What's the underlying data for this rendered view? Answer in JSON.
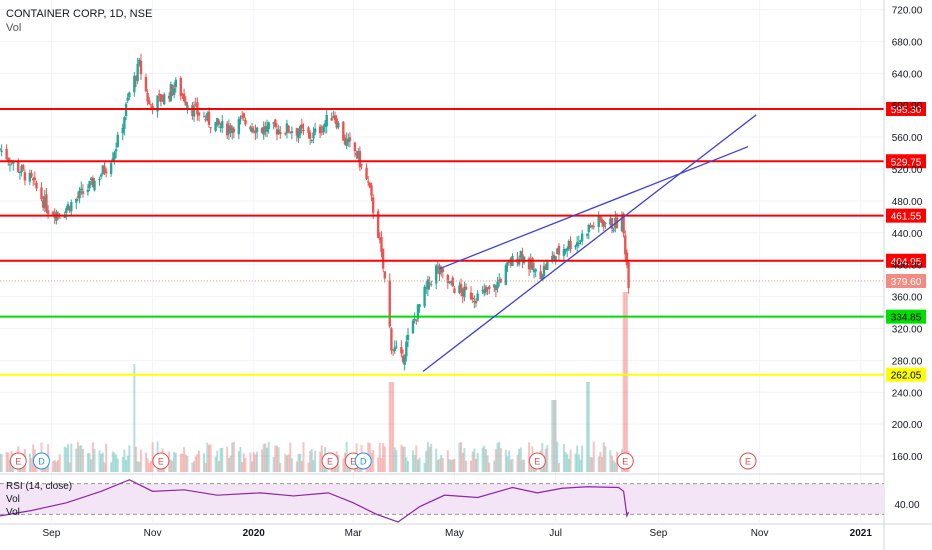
{
  "header": {
    "symbol_line": "CONTAINER CORP, 1D, NSE",
    "vol_label": "Vol"
  },
  "rsi_panel": {
    "label": "RSI (14, close)",
    "vol_label_1": "Vol",
    "vol_label_2": "Vol",
    "axis_label": "40.00",
    "upper_band": 70,
    "lower_band": 30
  },
  "colors": {
    "up": "#26a69a",
    "down": "#ef5350",
    "resistance": "#ff0000",
    "support_green": "#00dd00",
    "support_yellow": "#ffff00",
    "trendline": "#3f3fd6",
    "rsi_line": "#8e24aa",
    "rsi_fill": "#f3e5f5",
    "last_price": "#f28b82"
  },
  "chart_data": {
    "type": "candlestick",
    "title": "CONTAINER CORP, 1D, NSE",
    "y_axis_ticks": [
      "720.00",
      "680.00",
      "640.00",
      "600.00",
      "560.00",
      "520.00",
      "480.00",
      "440.00",
      "400.00",
      "360.00",
      "320.00",
      "280.00",
      "240.00",
      "200.00",
      "160.00"
    ],
    "y_tick_values": [
      720,
      680,
      640,
      600,
      560,
      520,
      480,
      440,
      400,
      360,
      320,
      280,
      240,
      200,
      160
    ],
    "x_axis_ticks": [
      "Sep",
      "Nov",
      "2020",
      "Mar",
      "May",
      "Jul",
      "Sep",
      "Nov",
      "2021"
    ],
    "x_tick_dates": [
      "2019-09-01",
      "2019-11-01",
      "2020-01-01",
      "2020-03-01",
      "2020-05-01",
      "2020-07-01",
      "2020-09-01",
      "2020-11-01",
      "2021-01-01"
    ],
    "date_range": [
      "2019-08-01",
      "2021-01-15"
    ],
    "price_range": [
      140,
      732
    ],
    "price_path": [
      [
        "2019-08-01",
        545
      ],
      [
        "2019-08-10",
        525
      ],
      [
        "2019-08-20",
        505
      ],
      [
        "2019-08-30",
        470
      ],
      [
        "2019-09-06",
        465
      ],
      [
        "2019-09-15",
        480
      ],
      [
        "2019-09-25",
        500
      ],
      [
        "2019-10-05",
        525
      ],
      [
        "2019-10-12",
        560
      ],
      [
        "2019-10-18",
        615
      ],
      [
        "2019-10-24",
        650
      ],
      [
        "2019-10-30",
        600
      ],
      [
        "2019-11-08",
        610
      ],
      [
        "2019-11-15",
        625
      ],
      [
        "2019-11-25",
        595
      ],
      [
        "2019-12-05",
        580
      ],
      [
        "2019-12-15",
        570
      ],
      [
        "2019-12-25",
        580
      ],
      [
        "2020-01-05",
        570
      ],
      [
        "2020-01-15",
        570
      ],
      [
        "2020-01-25",
        570
      ],
      [
        "2020-02-05",
        560
      ],
      [
        "2020-02-12",
        575
      ],
      [
        "2020-02-18",
        590
      ],
      [
        "2020-02-25",
        555
      ],
      [
        "2020-03-03",
        540
      ],
      [
        "2020-03-10",
        500
      ],
      [
        "2020-03-16",
        440
      ],
      [
        "2020-03-20",
        380
      ],
      [
        "2020-03-24",
        300
      ],
      [
        "2020-03-30",
        280
      ],
      [
        "2020-04-05",
        320
      ],
      [
        "2020-04-12",
        360
      ],
      [
        "2020-04-20",
        395
      ],
      [
        "2020-04-28",
        375
      ],
      [
        "2020-05-06",
        365
      ],
      [
        "2020-05-15",
        360
      ],
      [
        "2020-05-25",
        370
      ],
      [
        "2020-06-03",
        400
      ],
      [
        "2020-06-10",
        415
      ],
      [
        "2020-06-20",
        385
      ],
      [
        "2020-06-30",
        410
      ],
      [
        "2020-07-08",
        425
      ],
      [
        "2020-07-15",
        430
      ],
      [
        "2020-07-20",
        445
      ],
      [
        "2020-07-28",
        455
      ],
      [
        "2020-08-05",
        450
      ],
      [
        "2020-08-10",
        455
      ],
      [
        "2020-08-12",
        420
      ],
      [
        "2020-08-14",
        379.6
      ]
    ],
    "volume_spikes": [
      [
        "2020-03-24",
        0.5
      ],
      [
        "2019-10-20",
        0.6
      ],
      [
        "2020-06-30",
        0.4
      ],
      [
        "2020-07-20",
        0.5
      ],
      [
        "2020-08-12",
        1.0
      ]
    ],
    "horizontal_levels": [
      {
        "price": 595.3,
        "label": "595.30",
        "role": "resistance"
      },
      {
        "price": 529.75,
        "label": "529.75",
        "role": "resistance"
      },
      {
        "price": 461.55,
        "label": "461.55",
        "role": "resistance"
      },
      {
        "price": 404.95,
        "label": "404.95",
        "role": "resistance"
      },
      {
        "price": 379.6,
        "label": "379.60",
        "role": "last_price"
      },
      {
        "price": 334.85,
        "label": "334.85",
        "role": "support"
      },
      {
        "price": 262.05,
        "label": "262.05",
        "role": "support"
      }
    ],
    "trendlines": [
      {
        "from": [
          "2020-04-12",
          266
        ],
        "to": [
          "2020-10-30",
          588
        ]
      },
      {
        "from": [
          "2020-04-22",
          395
        ],
        "to": [
          "2020-10-25",
          548
        ]
      }
    ],
    "event_markers": [
      {
        "date": "2019-08-12",
        "label": "E"
      },
      {
        "date": "2019-08-26",
        "label": "D"
      },
      {
        "date": "2019-11-06",
        "label": "E"
      },
      {
        "date": "2020-02-16",
        "label": "E"
      },
      {
        "date": "2020-03-01",
        "label": "E"
      },
      {
        "date": "2020-03-07",
        "label": "D"
      },
      {
        "date": "2020-06-20",
        "label": "E"
      },
      {
        "date": "2020-08-12",
        "label": "E"
      },
      {
        "date": "2020-10-25",
        "label": "E"
      }
    ],
    "rsi_path": [
      [
        "2019-08-01",
        28
      ],
      [
        "2019-08-20",
        35
      ],
      [
        "2019-09-10",
        45
      ],
      [
        "2019-10-01",
        60
      ],
      [
        "2019-10-18",
        75
      ],
      [
        "2019-11-01",
        60
      ],
      [
        "2019-11-20",
        62
      ],
      [
        "2019-12-10",
        55
      ],
      [
        "2020-01-05",
        58
      ],
      [
        "2020-01-25",
        54
      ],
      [
        "2020-02-15",
        58
      ],
      [
        "2020-03-01",
        45
      ],
      [
        "2020-03-15",
        30
      ],
      [
        "2020-03-28",
        20
      ],
      [
        "2020-04-10",
        40
      ],
      [
        "2020-04-25",
        55
      ],
      [
        "2020-05-15",
        52
      ],
      [
        "2020-06-05",
        65
      ],
      [
        "2020-06-20",
        58
      ],
      [
        "2020-07-05",
        64
      ],
      [
        "2020-07-20",
        66
      ],
      [
        "2020-08-08",
        65
      ],
      [
        "2020-08-11",
        60
      ],
      [
        "2020-08-13",
        28
      ],
      [
        "2020-08-14",
        33
      ]
    ],
    "rsi_range": [
      20,
      80
    ]
  }
}
